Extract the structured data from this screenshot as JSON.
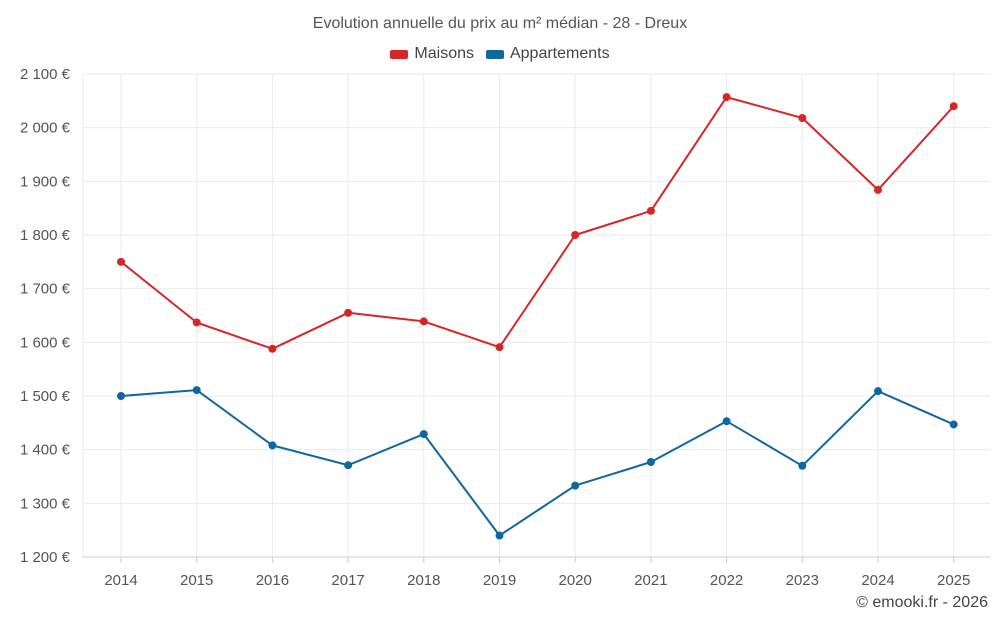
{
  "chart_data": {
    "type": "line",
    "title": "Evolution annuelle du prix au m² médian - 28 - Dreux",
    "categories": [
      "2014",
      "2015",
      "2016",
      "2017",
      "2018",
      "2019",
      "2020",
      "2021",
      "2022",
      "2023",
      "2024",
      "2025"
    ],
    "series": [
      {
        "name": "Maisons",
        "color": "#d62728",
        "values": [
          1750,
          1637,
          1588,
          1655,
          1639,
          1591,
          1800,
          1845,
          2057,
          2018,
          1884,
          2040
        ]
      },
      {
        "name": "Appartements",
        "color": "#0f67a0",
        "values": [
          1500,
          1511,
          1408,
          1371,
          1429,
          1240,
          1333,
          1377,
          1453,
          1370,
          1509,
          1447
        ]
      }
    ],
    "ylim": [
      1200,
      2100
    ],
    "yticks": [
      1200,
      1300,
      1400,
      1500,
      1600,
      1700,
      1800,
      1900,
      2000,
      2100
    ],
    "ytick_labels": [
      "1 200 €",
      "1 300 €",
      "1 400 €",
      "1 500 €",
      "1 600 €",
      "1 700 €",
      "1 800 €",
      "1 900 €",
      "2 000 €",
      "2 100 €"
    ],
    "grid": true,
    "legend_position": "top-center",
    "xlabel": "",
    "ylabel": ""
  },
  "credit": "© emooki.fr - 2026"
}
